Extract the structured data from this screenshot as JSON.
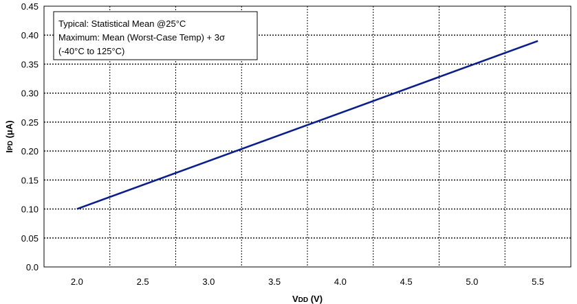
{
  "chart_data": {
    "type": "line",
    "xlabel_main": "V",
    "xlabel_sub": "DD",
    "xlabel_unit": " (V)",
    "ylabel_main": "I",
    "ylabel_sub": "PD",
    "ylabel_unit": " (μA)",
    "xlim": [
      1.75,
      5.75
    ],
    "ylim": [
      0.0,
      0.45
    ],
    "x_ticks": [
      2.0,
      2.5,
      3.0,
      3.5,
      4.0,
      4.5,
      5.0,
      5.5
    ],
    "x_tick_labels": [
      "2.0",
      "2.5",
      "3.0",
      "3.5",
      "4.0",
      "4.5",
      "5.0",
      "5.5"
    ],
    "y_ticks": [
      0.0,
      0.05,
      0.1,
      0.15,
      0.2,
      0.25,
      0.3,
      0.35,
      0.4,
      0.45
    ],
    "y_tick_labels": [
      "0.0",
      "0.05",
      "0.10",
      "0.15",
      "0.20",
      "0.25",
      "0.30",
      "0.35",
      "0.40",
      "0.45"
    ],
    "x_gridlines": [
      2.25,
      2.75,
      3.25,
      3.75,
      4.25,
      4.75,
      5.25
    ],
    "grid": true,
    "series": [
      {
        "color": "#0a1e8c",
        "x": [
          2.0,
          5.5
        ],
        "y": [
          0.1,
          0.39
        ]
      }
    ],
    "legend_box": {
      "placement": "top-left",
      "lines": [
        "Typical: Statistical Mean @25°C",
        "Maximum: Mean (Worst-Case Temp) + 3σ",
        "(-40°C to 125°C)"
      ]
    }
  }
}
